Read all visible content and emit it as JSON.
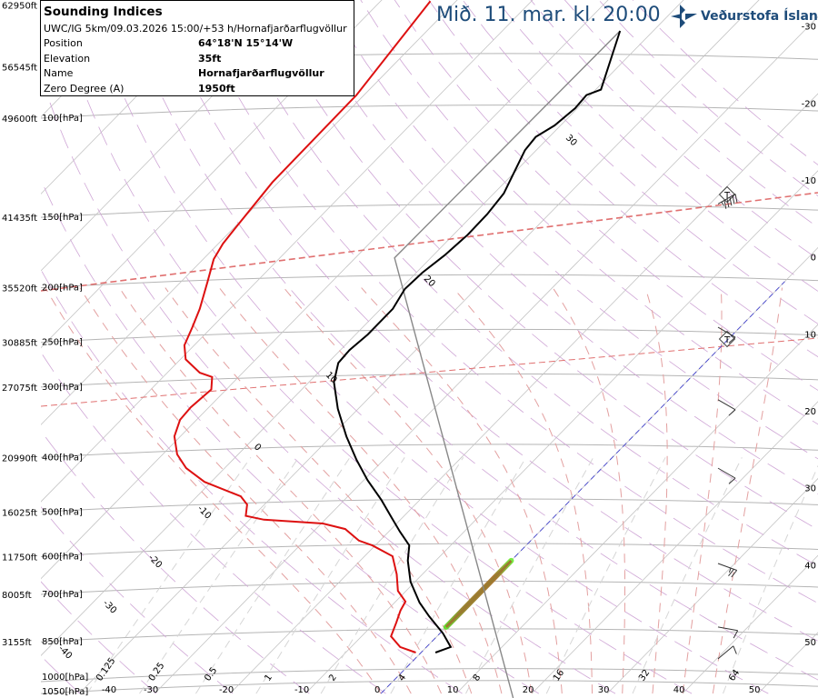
{
  "header": {
    "title": "Mið. 11. mar. kl. 20:00",
    "logo_text": "Veðurstofa Íslands",
    "logo_color": "#1e4c7a"
  },
  "info_box": {
    "title": "Sounding Indices",
    "subtitle": "UWC/IG 5km/09.03.2026 15:00/+53 h/Hornafjarðarflugvöllur",
    "rows": [
      {
        "label": "Position",
        "value": "64°18'N 15°14'W"
      },
      {
        "label": "Elevation",
        "value": "35ft"
      },
      {
        "label": "Name",
        "value": "Hornafjarðarflugvöllur"
      },
      {
        "label": "Zero Degree (A)",
        "value": "1950ft"
      }
    ]
  },
  "chart_data": {
    "type": "skew-t",
    "title": "Mið. 11. mar. kl. 20:00",
    "colors": {
      "temperature": "#000000",
      "dewpoint": "#dd1111",
      "parcel": "#888888",
      "zero_isotherm": "#4444cc",
      "tropopause": "#e07070"
    },
    "altitude_labels": [
      {
        "p": 63,
        "ft": "62950ft"
      },
      {
        "p": 81,
        "ft": "56545ft"
      },
      {
        "p": 100,
        "ft": "49600ft",
        "hpa": "100[hPa]"
      },
      {
        "p": 150,
        "ft": "41435ft",
        "hpa": "150[hPa]"
      },
      {
        "p": 200,
        "ft": "35520ft",
        "hpa": "200[hPa]"
      },
      {
        "p": 250,
        "ft": "30885ft",
        "hpa": "250[hPa]"
      },
      {
        "p": 300,
        "ft": "27075ft",
        "hpa": "300[hPa]"
      },
      {
        "p": 400,
        "ft": "20990ft",
        "hpa": "400[hPa]"
      },
      {
        "p": 500,
        "ft": "16025ft",
        "hpa": "500[hPa]"
      },
      {
        "p": 600,
        "ft": "11750ft",
        "hpa": "600[hPa]"
      },
      {
        "p": 700,
        "ft": "8005ft",
        "hpa": "700[hPa]"
      },
      {
        "p": 850,
        "ft": "3155ft",
        "hpa": "850[hPa]"
      },
      {
        "p": 1000,
        "hpa": "1000[hPa]"
      },
      {
        "p": 1050,
        "hpa": "1050[hPa]"
      }
    ],
    "right_temp_labels": [
      "-30",
      "-20",
      "-10",
      "0",
      "10",
      "20",
      "30",
      "40",
      "50"
    ],
    "bottom_temp_labels": [
      "-40",
      "-30",
      "-20",
      "-10",
      "0",
      "10",
      "20",
      "30",
      "40",
      "50"
    ],
    "mixing_ratio_labels": [
      "0.125",
      "0.25",
      "0.5",
      "1",
      "2",
      "4",
      "8",
      "16",
      "32",
      "64"
    ],
    "diagonal_labels": [
      "30",
      "20",
      "10",
      "0",
      "-10",
      "-20",
      "-30",
      "-40"
    ],
    "temperature": [
      [
        888,
        1.9
      ],
      [
        868,
        3.2
      ],
      [
        821,
        0.4
      ],
      [
        765,
        -3.7
      ],
      [
        724,
        -6.7
      ],
      [
        665,
        -10.6
      ],
      [
        610,
        -13.7
      ],
      [
        573,
        -15.5
      ],
      [
        542,
        -18.5
      ],
      [
        513,
        -21.3
      ],
      [
        476,
        -25.1
      ],
      [
        439,
        -29.5
      ],
      [
        404,
        -33.6
      ],
      [
        367,
        -38.0
      ],
      [
        328,
        -42.7
      ],
      [
        294,
        -46.7
      ],
      [
        272,
        -48.6
      ],
      [
        258,
        -48.8
      ],
      [
        242,
        -48.4
      ],
      [
        218,
        -48.4
      ],
      [
        201,
        -49.4
      ],
      [
        188,
        -49.2
      ],
      [
        175,
        -48.5
      ],
      [
        161,
        -48.1
      ],
      [
        148,
        -48.2
      ],
      [
        136,
        -48.7
      ],
      [
        126,
        -49.9
      ],
      [
        114,
        -51.5
      ],
      [
        108,
        -51.8
      ],
      [
        103,
        -50.8
      ],
      [
        96,
        -50.3
      ],
      [
        91,
        -50.5
      ],
      [
        89,
        -49.3
      ],
      [
        70,
        -54.4
      ]
    ],
    "dewpoint": [
      [
        888,
        -0.7
      ],
      [
        868,
        -3.5
      ],
      [
        831,
        -6.1
      ],
      [
        785,
        -7.2
      ],
      [
        748,
        -8.2
      ],
      [
        721,
        -8.7
      ],
      [
        690,
        -11.1
      ],
      [
        645,
        -13.4
      ],
      [
        599,
        -16.3
      ],
      [
        573,
        -20.4
      ],
      [
        562,
        -22.8
      ],
      [
        536,
        -26.1
      ],
      [
        524,
        -29.8
      ],
      [
        516,
        -38.1
      ],
      [
        508,
        -41.0
      ],
      [
        485,
        -42.3
      ],
      [
        469,
        -44.2
      ],
      [
        442,
        -50.9
      ],
      [
        418,
        -55.1
      ],
      [
        395,
        -58.1
      ],
      [
        367,
        -60.8
      ],
      [
        343,
        -62.2
      ],
      [
        326,
        -62.4
      ],
      [
        303,
        -62.0
      ],
      [
        288,
        -63.5
      ],
      [
        283,
        -65.7
      ],
      [
        268,
        -69.3
      ],
      [
        253,
        -71.3
      ],
      [
        235,
        -72.6
      ],
      [
        218,
        -74.0
      ],
      [
        195,
        -76.5
      ],
      [
        178,
        -78.6
      ],
      [
        167,
        -79.4
      ],
      [
        156,
        -79.8
      ],
      [
        130,
        -80.8
      ],
      [
        91,
        -81.0
      ],
      [
        62,
        -83.4
      ]
    ],
    "parcel": [
      [
        1069,
        18.1
      ],
      [
        177,
        -54.8
      ],
      [
        70,
        -54.4
      ]
    ],
    "icing_layer": {
      "p_bottom": 800,
      "p_top": 610,
      "temp": 0
    },
    "winds": [
      {
        "p": 142,
        "dir": 240,
        "kt": 45
      },
      {
        "p": 235,
        "dir": 300,
        "kt": 10
      },
      {
        "p": 316,
        "dir": 300,
        "kt": 10
      },
      {
        "p": 418,
        "dir": 300,
        "kt": 10
      },
      {
        "p": 617,
        "dir": 290,
        "kt": 15
      },
      {
        "p": 800,
        "dir": 280,
        "kt": 10
      },
      {
        "p": 911,
        "dir": 230,
        "kt": 10
      }
    ]
  }
}
